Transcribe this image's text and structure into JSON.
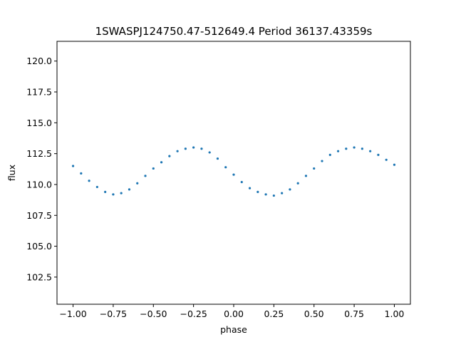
{
  "chart_data": {
    "type": "scatter",
    "title": "1SWASPJ124750.47-512649.4 Period 36137.43359s",
    "xlabel": "phase",
    "ylabel": "flux",
    "xlim": [
      -1.1,
      1.1
    ],
    "ylim": [
      100.3,
      121.6
    ],
    "x_ticks": [
      -1.0,
      -0.75,
      -0.5,
      -0.25,
      0.0,
      0.25,
      0.5,
      0.75,
      1.0
    ],
    "x_tick_labels": [
      "−1.00",
      "−0.75",
      "−0.50",
      "−0.25",
      "0.00",
      "0.25",
      "0.50",
      "0.75",
      "1.00"
    ],
    "y_ticks": [
      102.5,
      105.0,
      107.5,
      110.0,
      112.5,
      115.0,
      117.5,
      120.0
    ],
    "y_tick_labels": [
      "102.5",
      "105.0",
      "107.5",
      "110.0",
      "112.5",
      "115.0",
      "117.5",
      "120.0"
    ],
    "grid": false,
    "marker_color": "#1f77b4",
    "series": [
      {
        "x": [
          -1.0,
          -0.95,
          -0.9,
          -0.85,
          -0.8,
          -0.75,
          -0.7,
          -0.65,
          -0.6,
          -0.55,
          -0.5,
          -0.45,
          -0.4,
          -0.35,
          -0.3,
          -0.25,
          -0.2,
          -0.15,
          -0.1,
          -0.05,
          0.0,
          0.05,
          0.1,
          0.15,
          0.2,
          0.25,
          0.3,
          0.35,
          0.4,
          0.45,
          0.5,
          0.55,
          0.6,
          0.65,
          0.7,
          0.75,
          0.8,
          0.85,
          0.9,
          0.95,
          1.0
        ],
        "y": [
          111.5,
          110.9,
          110.3,
          109.8,
          109.4,
          109.2,
          109.3,
          109.6,
          110.1,
          110.7,
          111.3,
          111.8,
          112.3,
          112.7,
          112.9,
          113.0,
          112.9,
          112.6,
          112.1,
          111.4,
          110.8,
          110.2,
          109.7,
          109.4,
          109.2,
          109.1,
          109.3,
          109.6,
          110.1,
          110.7,
          111.3,
          111.9,
          112.4,
          112.7,
          112.9,
          113.0,
          112.9,
          112.7,
          112.4,
          112.0,
          111.6
        ]
      }
    ]
  }
}
